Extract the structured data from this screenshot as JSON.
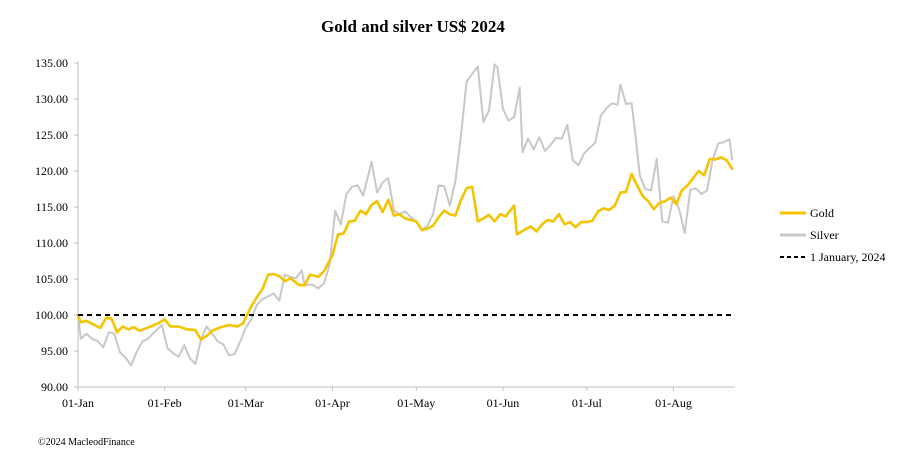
{
  "footer": "©2024 MacleodFinance",
  "chart_data": {
    "type": "line",
    "title": "Gold and silver  US$ 2024",
    "xlabel": "",
    "ylabel": "",
    "ylim": [
      90,
      135
    ],
    "yticks": [
      "90.00",
      "95.00",
      "100.00",
      "105.00",
      "110.00",
      "115.00",
      "120.00",
      "125.00",
      "130.00",
      "135.00"
    ],
    "xlim": [
      "2024-01-01",
      "2024-08-23"
    ],
    "xticks": [
      {
        "date": "2024-01-01",
        "label": "01-Jan"
      },
      {
        "date": "2024-02-01",
        "label": "01-Feb"
      },
      {
        "date": "2024-03-01",
        "label": "01-Mar"
      },
      {
        "date": "2024-04-01",
        "label": "01-Apr"
      },
      {
        "date": "2024-05-01",
        "label": "01-May"
      },
      {
        "date": "2024-06-01",
        "label": "01-Jun"
      },
      {
        "date": "2024-07-01",
        "label": "01-Jul"
      },
      {
        "date": "2024-08-01",
        "label": "01-Aug"
      }
    ],
    "grid": false,
    "legend_position": "right",
    "series": [
      {
        "name": "Gold",
        "color": "#F5C400",
        "points": [
          [
            "2024-01-01",
            100.0
          ],
          [
            "2024-01-02",
            99.0
          ],
          [
            "2024-01-04",
            99.2
          ],
          [
            "2024-01-07",
            98.6
          ],
          [
            "2024-01-09",
            98.2
          ],
          [
            "2024-01-11",
            99.6
          ],
          [
            "2024-01-13",
            99.5
          ],
          [
            "2024-01-15",
            97.6
          ],
          [
            "2024-01-17",
            98.4
          ],
          [
            "2024-01-19",
            98.0
          ],
          [
            "2024-01-21",
            98.3
          ],
          [
            "2024-01-23",
            97.8
          ],
          [
            "2024-01-25",
            98.1
          ],
          [
            "2024-01-27",
            98.4
          ],
          [
            "2024-01-30",
            98.9
          ],
          [
            "2024-02-01",
            99.4
          ],
          [
            "2024-02-03",
            98.4
          ],
          [
            "2024-02-06",
            98.4
          ],
          [
            "2024-02-09",
            98.0
          ],
          [
            "2024-02-12",
            97.9
          ],
          [
            "2024-02-14",
            96.6
          ],
          [
            "2024-02-16",
            97.1
          ],
          [
            "2024-02-18",
            97.8
          ],
          [
            "2024-02-21",
            98.3
          ],
          [
            "2024-02-24",
            98.6
          ],
          [
            "2024-02-27",
            98.4
          ],
          [
            "2024-02-29",
            98.8
          ],
          [
            "2024-03-01",
            99.6
          ],
          [
            "2024-03-03",
            101.2
          ],
          [
            "2024-03-05",
            102.5
          ],
          [
            "2024-03-07",
            103.6
          ],
          [
            "2024-03-09",
            105.6
          ],
          [
            "2024-03-11",
            105.7
          ],
          [
            "2024-03-13",
            105.4
          ],
          [
            "2024-03-15",
            104.7
          ],
          [
            "2024-03-17",
            105.1
          ],
          [
            "2024-03-20",
            104.2
          ],
          [
            "2024-03-22",
            104.1
          ],
          [
            "2024-03-24",
            105.6
          ],
          [
            "2024-03-27",
            105.3
          ],
          [
            "2024-03-29",
            106.1
          ],
          [
            "2024-04-01",
            108.3
          ],
          [
            "2024-04-03",
            111.2
          ],
          [
            "2024-04-05",
            111.3
          ],
          [
            "2024-04-07",
            113.0
          ],
          [
            "2024-04-09",
            113.1
          ],
          [
            "2024-04-11",
            114.5
          ],
          [
            "2024-04-13",
            114.0
          ],
          [
            "2024-04-15",
            115.3
          ],
          [
            "2024-04-17",
            115.8
          ],
          [
            "2024-04-19",
            114.3
          ],
          [
            "2024-04-21",
            116.0
          ],
          [
            "2024-04-23",
            113.8
          ],
          [
            "2024-04-25",
            114.0
          ],
          [
            "2024-04-27",
            113.4
          ],
          [
            "2024-04-29",
            113.2
          ],
          [
            "2024-05-01",
            113.0
          ],
          [
            "2024-05-03",
            111.8
          ],
          [
            "2024-05-05",
            112.0
          ],
          [
            "2024-05-07",
            112.4
          ],
          [
            "2024-05-09",
            113.6
          ],
          [
            "2024-05-11",
            114.5
          ],
          [
            "2024-05-13",
            114.0
          ],
          [
            "2024-05-15",
            113.8
          ],
          [
            "2024-05-17",
            116.0
          ],
          [
            "2024-05-19",
            117.6
          ],
          [
            "2024-05-21",
            117.8
          ],
          [
            "2024-05-23",
            113.0
          ],
          [
            "2024-05-25",
            113.4
          ],
          [
            "2024-05-27",
            113.9
          ],
          [
            "2024-05-29",
            113.0
          ],
          [
            "2024-05-31",
            114.0
          ],
          [
            "2024-06-02",
            113.7
          ],
          [
            "2024-06-05",
            115.2
          ],
          [
            "2024-06-06",
            111.2
          ],
          [
            "2024-06-09",
            111.9
          ],
          [
            "2024-06-11",
            112.3
          ],
          [
            "2024-06-13",
            111.6
          ],
          [
            "2024-06-15",
            112.6
          ],
          [
            "2024-06-17",
            113.2
          ],
          [
            "2024-06-19",
            113.0
          ],
          [
            "2024-06-21",
            114.0
          ],
          [
            "2024-06-23",
            112.6
          ],
          [
            "2024-06-25",
            112.9
          ],
          [
            "2024-06-27",
            112.2
          ],
          [
            "2024-06-29",
            112.9
          ],
          [
            "2024-07-01",
            112.9
          ],
          [
            "2024-07-03",
            113.1
          ],
          [
            "2024-07-05",
            114.4
          ],
          [
            "2024-07-07",
            114.8
          ],
          [
            "2024-07-09",
            114.6
          ],
          [
            "2024-07-11",
            115.2
          ],
          [
            "2024-07-13",
            117.0
          ],
          [
            "2024-07-15",
            117.1
          ],
          [
            "2024-07-17",
            119.6
          ],
          [
            "2024-07-19",
            118.0
          ],
          [
            "2024-07-21",
            116.5
          ],
          [
            "2024-07-23",
            115.8
          ],
          [
            "2024-07-25",
            114.7
          ],
          [
            "2024-07-27",
            115.6
          ],
          [
            "2024-07-29",
            115.8
          ],
          [
            "2024-07-31",
            116.3
          ],
          [
            "2024-08-02",
            115.4
          ],
          [
            "2024-08-04",
            117.3
          ],
          [
            "2024-08-06",
            118.0
          ],
          [
            "2024-08-08",
            119.0
          ],
          [
            "2024-08-10",
            120.0
          ],
          [
            "2024-08-12",
            119.4
          ],
          [
            "2024-08-14",
            121.7
          ],
          [
            "2024-08-16",
            121.6
          ],
          [
            "2024-08-18",
            121.9
          ],
          [
            "2024-08-20",
            121.5
          ],
          [
            "2024-08-22",
            120.3
          ]
        ]
      },
      {
        "name": "Silver",
        "color": "#C8C8C8",
        "points": [
          [
            "2024-01-01",
            100.0
          ],
          [
            "2024-01-02",
            96.7
          ],
          [
            "2024-01-04",
            97.4
          ],
          [
            "2024-01-06",
            96.7
          ],
          [
            "2024-01-08",
            96.4
          ],
          [
            "2024-01-10",
            95.5
          ],
          [
            "2024-01-12",
            97.6
          ],
          [
            "2024-01-14",
            97.4
          ],
          [
            "2024-01-16",
            94.8
          ],
          [
            "2024-01-18",
            94.1
          ],
          [
            "2024-01-20",
            93.0
          ],
          [
            "2024-01-22",
            94.9
          ],
          [
            "2024-01-24",
            96.3
          ],
          [
            "2024-01-26",
            96.7
          ],
          [
            "2024-01-28",
            97.5
          ],
          [
            "2024-01-31",
            98.6
          ],
          [
            "2024-02-02",
            95.4
          ],
          [
            "2024-02-04",
            94.7
          ],
          [
            "2024-02-06",
            94.2
          ],
          [
            "2024-02-08",
            95.8
          ],
          [
            "2024-02-10",
            94.0
          ],
          [
            "2024-02-12",
            93.2
          ],
          [
            "2024-02-14",
            96.6
          ],
          [
            "2024-02-16",
            98.4
          ],
          [
            "2024-02-18",
            97.4
          ],
          [
            "2024-02-20",
            96.3
          ],
          [
            "2024-02-22",
            95.9
          ],
          [
            "2024-02-24",
            94.4
          ],
          [
            "2024-02-26",
            94.6
          ],
          [
            "2024-02-28",
            96.3
          ],
          [
            "2024-03-01",
            98.2
          ],
          [
            "2024-03-03",
            99.4
          ],
          [
            "2024-03-05",
            101.4
          ],
          [
            "2024-03-07",
            102.2
          ],
          [
            "2024-03-09",
            102.6
          ],
          [
            "2024-03-11",
            103.0
          ],
          [
            "2024-03-13",
            102.0
          ],
          [
            "2024-03-15",
            105.6
          ],
          [
            "2024-03-17",
            105.3
          ],
          [
            "2024-03-19",
            105.1
          ],
          [
            "2024-03-21",
            106.2
          ],
          [
            "2024-03-22",
            104.2
          ],
          [
            "2024-03-25",
            104.2
          ],
          [
            "2024-03-27",
            103.7
          ],
          [
            "2024-03-29",
            104.4
          ],
          [
            "2024-03-31",
            107.0
          ],
          [
            "2024-04-02",
            114.5
          ],
          [
            "2024-04-04",
            112.6
          ],
          [
            "2024-04-06",
            116.8
          ],
          [
            "2024-04-08",
            117.8
          ],
          [
            "2024-04-10",
            118.0
          ],
          [
            "2024-04-12",
            116.6
          ],
          [
            "2024-04-14",
            119.7
          ],
          [
            "2024-04-15",
            121.3
          ],
          [
            "2024-04-17",
            117.0
          ],
          [
            "2024-04-19",
            118.4
          ],
          [
            "2024-04-21",
            119.0
          ],
          [
            "2024-04-23",
            114.5
          ],
          [
            "2024-04-25",
            114.0
          ],
          [
            "2024-04-27",
            114.4
          ],
          [
            "2024-04-29",
            113.6
          ],
          [
            "2024-05-01",
            113.0
          ],
          [
            "2024-05-03",
            111.8
          ],
          [
            "2024-05-05",
            112.4
          ],
          [
            "2024-05-07",
            114.0
          ],
          [
            "2024-05-09",
            118.0
          ],
          [
            "2024-05-11",
            117.9
          ],
          [
            "2024-05-13",
            115.2
          ],
          [
            "2024-05-15",
            118.6
          ],
          [
            "2024-05-17",
            125.0
          ],
          [
            "2024-05-19",
            132.4
          ],
          [
            "2024-05-21",
            133.5
          ],
          [
            "2024-05-23",
            134.5
          ],
          [
            "2024-05-25",
            126.8
          ],
          [
            "2024-05-27",
            128.4
          ],
          [
            "2024-05-29",
            134.8
          ],
          [
            "2024-05-30",
            134.4
          ],
          [
            "2024-06-01",
            128.6
          ],
          [
            "2024-06-03",
            127.0
          ],
          [
            "2024-06-05",
            127.5
          ],
          [
            "2024-06-07",
            131.6
          ],
          [
            "2024-06-08",
            122.6
          ],
          [
            "2024-06-10",
            124.5
          ],
          [
            "2024-06-12",
            123.0
          ],
          [
            "2024-06-14",
            124.7
          ],
          [
            "2024-06-16",
            122.8
          ],
          [
            "2024-06-18",
            123.6
          ],
          [
            "2024-06-20",
            124.6
          ],
          [
            "2024-06-22",
            124.5
          ],
          [
            "2024-06-24",
            126.4
          ],
          [
            "2024-06-26",
            121.5
          ],
          [
            "2024-06-28",
            120.8
          ],
          [
            "2024-06-30",
            122.4
          ],
          [
            "2024-07-02",
            123.2
          ],
          [
            "2024-07-04",
            123.9
          ],
          [
            "2024-07-06",
            127.7
          ],
          [
            "2024-07-08",
            128.7
          ],
          [
            "2024-07-10",
            129.4
          ],
          [
            "2024-07-12",
            129.2
          ],
          [
            "2024-07-13",
            132.0
          ],
          [
            "2024-07-15",
            129.3
          ],
          [
            "2024-07-17",
            129.4
          ],
          [
            "2024-07-18",
            126.3
          ],
          [
            "2024-07-20",
            119.3
          ],
          [
            "2024-07-22",
            117.5
          ],
          [
            "2024-07-24",
            117.3
          ],
          [
            "2024-07-26",
            121.7
          ],
          [
            "2024-07-28",
            113.0
          ],
          [
            "2024-07-30",
            112.8
          ],
          [
            "2024-08-01",
            116.5
          ],
          [
            "2024-08-03",
            114.7
          ],
          [
            "2024-08-05",
            111.4
          ],
          [
            "2024-08-07",
            117.4
          ],
          [
            "2024-08-09",
            117.6
          ],
          [
            "2024-08-11",
            116.8
          ],
          [
            "2024-08-13",
            117.3
          ],
          [
            "2024-08-15",
            121.5
          ],
          [
            "2024-08-17",
            123.8
          ],
          [
            "2024-08-19",
            124.0
          ],
          [
            "2024-08-21",
            124.4
          ],
          [
            "2024-08-22",
            121.6
          ]
        ]
      },
      {
        "name": "1 January, 2024",
        "color": "#000000",
        "dashed": true,
        "points": [
          [
            "2024-01-01",
            100.0
          ],
          [
            "2024-08-22",
            100.0
          ]
        ]
      }
    ]
  }
}
